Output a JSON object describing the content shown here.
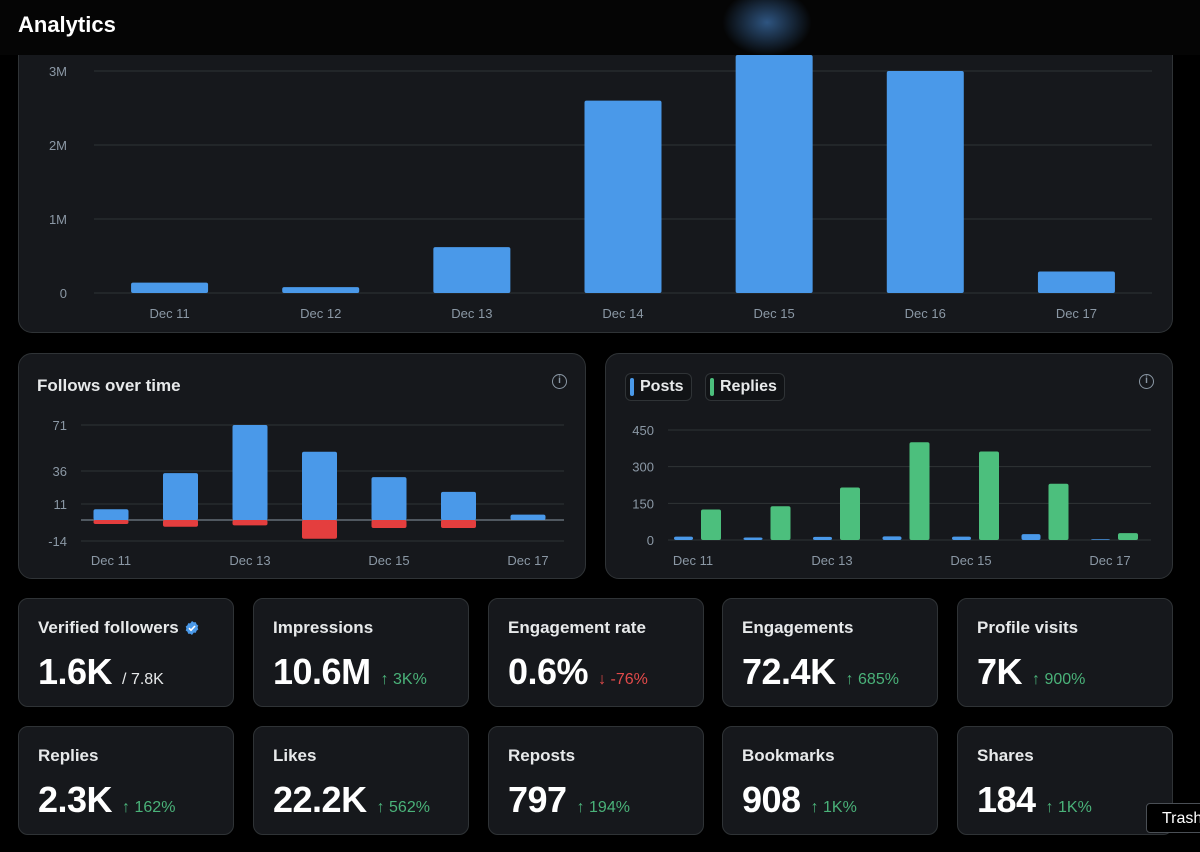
{
  "header": {
    "title": "Analytics"
  },
  "impressions_chart": {
    "chart_data": {
      "type": "bar",
      "categories": [
        "Dec 11",
        "Dec 12",
        "Dec 13",
        "Dec 14",
        "Dec 15",
        "Dec 16",
        "Dec 17"
      ],
      "values": [
        140000,
        80000,
        620000,
        2600000,
        3250000,
        3000000,
        290000
      ],
      "y_ticks": [
        0,
        1000000,
        2000000,
        3000000
      ],
      "y_tick_labels": [
        "0",
        "1M",
        "2M",
        "3M"
      ],
      "ylim": [
        0,
        3250000
      ],
      "bar_color": "#4a99e9",
      "grid": true
    }
  },
  "follows_chart": {
    "title": "Follows over time",
    "info_icon": "info-icon",
    "chart_data": {
      "type": "bar",
      "categories": [
        "Dec 11",
        "Dec 12",
        "Dec 13",
        "Dec 14",
        "Dec 15",
        "Dec 16",
        "Dec 17"
      ],
      "series": [
        {
          "values": [
            8,
            35,
            71,
            51,
            32,
            21,
            4
          ],
          "color": "#4a99e9"
        },
        {
          "values": [
            -3,
            -5,
            -4,
            -14,
            -6,
            -6,
            0
          ],
          "color": "#e43e3e"
        }
      ],
      "x_tick_labels": [
        "Dec 11",
        "Dec 13",
        "Dec 15",
        "Dec 17"
      ],
      "y_ticks": [
        -14,
        11,
        36,
        71
      ],
      "y_tick_labels": [
        "-14",
        "11",
        "36",
        "71"
      ],
      "ylim": [
        -14,
        71
      ],
      "grid": true
    }
  },
  "posts_chart": {
    "info_icon": "info-icon",
    "chart_data": {
      "type": "bar",
      "categories": [
        "Dec 11",
        "Dec 12",
        "Dec 13",
        "Dec 14",
        "Dec 15",
        "Dec 16",
        "Dec 17"
      ],
      "series": [
        {
          "name": "Posts",
          "values": [
            14,
            10,
            13,
            15,
            14,
            24,
            3
          ],
          "color": "#4a99e9"
        },
        {
          "name": "Replies",
          "values": [
            125,
            138,
            215,
            400,
            362,
            230,
            28
          ],
          "color": "#4cbf7d"
        }
      ],
      "x_tick_labels": [
        "Dec 11",
        "Dec 13",
        "Dec 15",
        "Dec 17"
      ],
      "y_ticks": [
        0,
        150,
        300,
        450
      ],
      "y_tick_labels": [
        "0",
        "150",
        "300",
        "450"
      ],
      "ylim": [
        0,
        450
      ],
      "legend": "top-left",
      "grid": true
    }
  },
  "stats": [
    {
      "label": "Verified followers",
      "value": "1.6K",
      "sub": "/ 7.8K",
      "verified_icon": "verified-badge-icon"
    },
    {
      "label": "Impressions",
      "value": "10.6M",
      "change": "↑ 3K%",
      "direction": "up"
    },
    {
      "label": "Engagement rate",
      "value": "0.6%",
      "change": "↓ -76%",
      "direction": "down"
    },
    {
      "label": "Engagements",
      "value": "72.4K",
      "change": "↑ 685%",
      "direction": "up"
    },
    {
      "label": "Profile visits",
      "value": "7K",
      "change": "↑ 900%",
      "direction": "up"
    },
    {
      "label": "Replies",
      "value": "2.3K",
      "change": "↑ 162%",
      "direction": "up"
    },
    {
      "label": "Likes",
      "value": "22.2K",
      "change": "↑ 562%",
      "direction": "up"
    },
    {
      "label": "Reposts",
      "value": "797",
      "change": "↑ 194%",
      "direction": "up"
    },
    {
      "label": "Bookmarks",
      "value": "908",
      "change": "↑ 1K%",
      "direction": "up"
    },
    {
      "label": "Shares",
      "value": "184",
      "change": "↑ 1K%",
      "direction": "up"
    }
  ],
  "tooltip": {
    "text": "Trash"
  },
  "colors": {
    "background": "#000000",
    "card": "#16181c",
    "border": "#2f3336",
    "blue": "#4a99e9",
    "green": "#4cbf7d",
    "red": "#e43e3e",
    "up": "#4ab279",
    "down": "#e24a4a"
  }
}
